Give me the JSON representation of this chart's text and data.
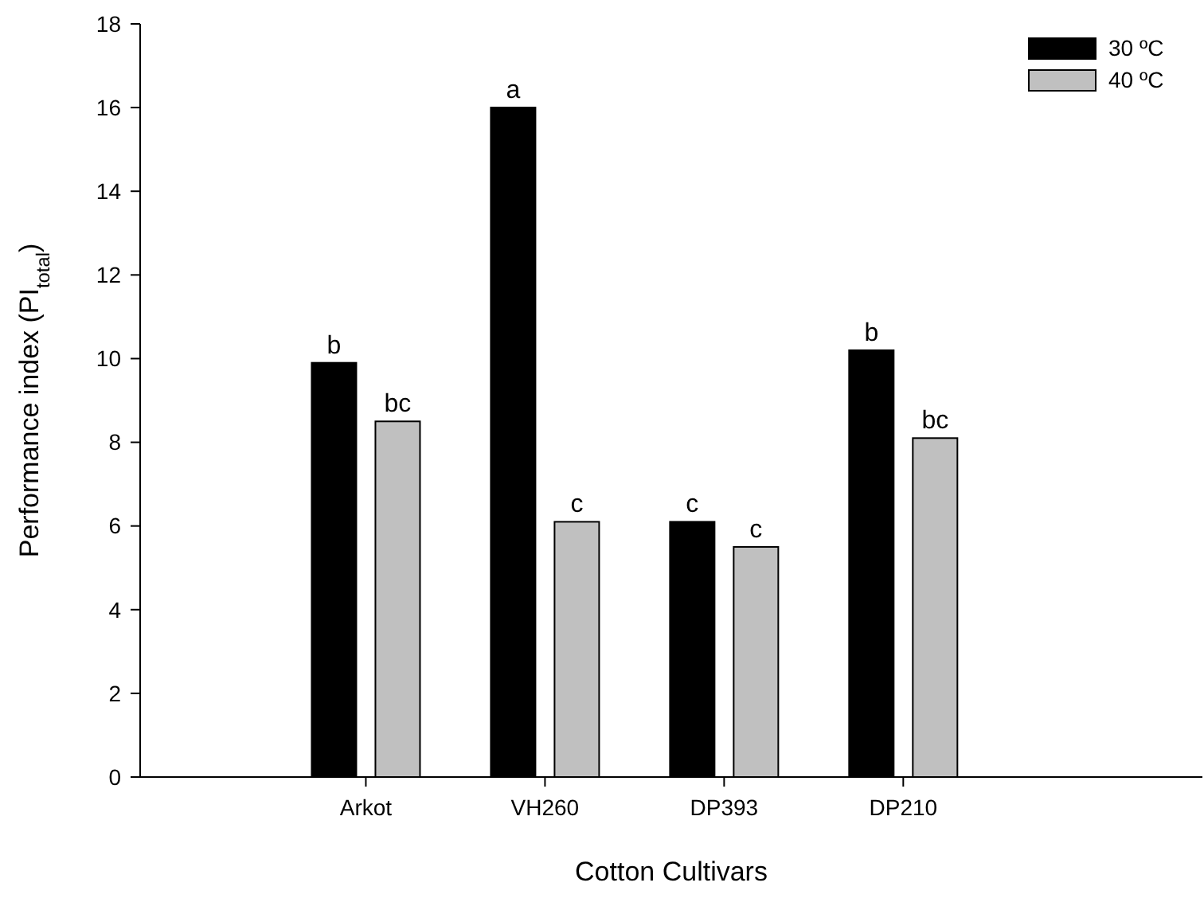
{
  "chart_data": {
    "type": "bar",
    "xlabel": "Cotton Cultivars",
    "ylabel": "Performance index (PI$_{total}$)",
    "categories": [
      "Arkot",
      "VH260",
      "DP393",
      "DP210"
    ],
    "series": [
      {
        "name": "30 ºC",
        "color": "#000000",
        "values": [
          9.9,
          16,
          6.1,
          10.2
        ],
        "value_labels": [
          "b",
          "a",
          "c",
          "b"
        ]
      },
      {
        "name": "40 ºC",
        "color": "#c0c0c0",
        "values": [
          8.5,
          6.1,
          5.5,
          8.1
        ],
        "value_labels": [
          "bc",
          "c",
          "c",
          "bc"
        ]
      }
    ],
    "ylim": [
      0,
      18
    ],
    "yticks": [
      0,
      2,
      4,
      6,
      8,
      10,
      12,
      14,
      16,
      18
    ],
    "grid": false,
    "legend": "top right"
  }
}
